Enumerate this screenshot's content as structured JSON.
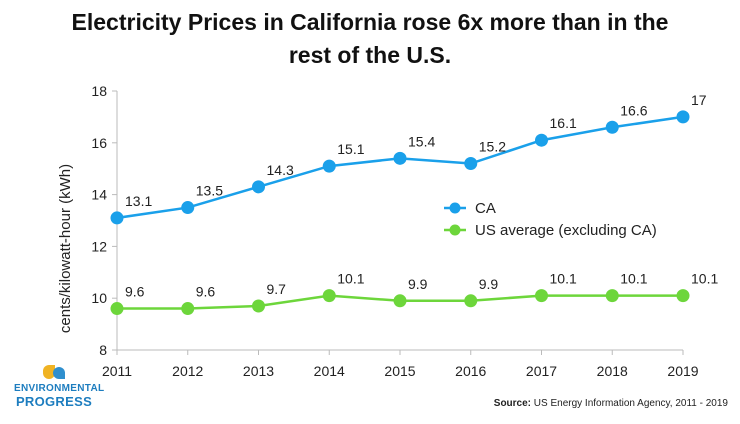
{
  "title_line1": "Electricity Prices in California rose 6x more than in the",
  "title_line2": "rest of the U.S.",
  "logo": {
    "line1": "ENVIRONMENTAL",
    "line2": "PROGRESS"
  },
  "source": {
    "label": "Source:",
    "text": "US Energy Information Agency, 2011 - 2019"
  },
  "chart_data": {
    "type": "line",
    "title": "Electricity Prices in California rose 6x more than in the rest of the U.S.",
    "xlabel": "",
    "ylabel": "cents/kilowatt-hour (kWh)",
    "x": [
      "2011",
      "2012",
      "2013",
      "2014",
      "2015",
      "2016",
      "2017",
      "2018",
      "2019"
    ],
    "ylim": [
      8,
      18
    ],
    "yticks": [
      "8",
      "10",
      "12",
      "14",
      "16",
      "18"
    ],
    "grid": false,
    "legend_position": "center-right",
    "series": [
      {
        "name": "CA",
        "color": "#1aa0ea",
        "values": [
          13.1,
          13.5,
          14.3,
          15.1,
          15.4,
          15.2,
          16.1,
          16.6,
          17
        ],
        "labels": [
          "13.1",
          "13.5",
          "14.3",
          "15.1",
          "15.4",
          "15.2",
          "16.1",
          "16.6",
          "17"
        ]
      },
      {
        "name": "US average (excluding CA)",
        "color": "#6dd63b",
        "values": [
          9.6,
          9.6,
          9.7,
          10.1,
          9.9,
          9.9,
          10.1,
          10.1,
          10.1
        ],
        "labels": [
          "9.6",
          "9.6",
          "9.7",
          "10.1",
          "9.9",
          "9.9",
          "10.1",
          "10.1",
          "10.1"
        ]
      }
    ]
  }
}
